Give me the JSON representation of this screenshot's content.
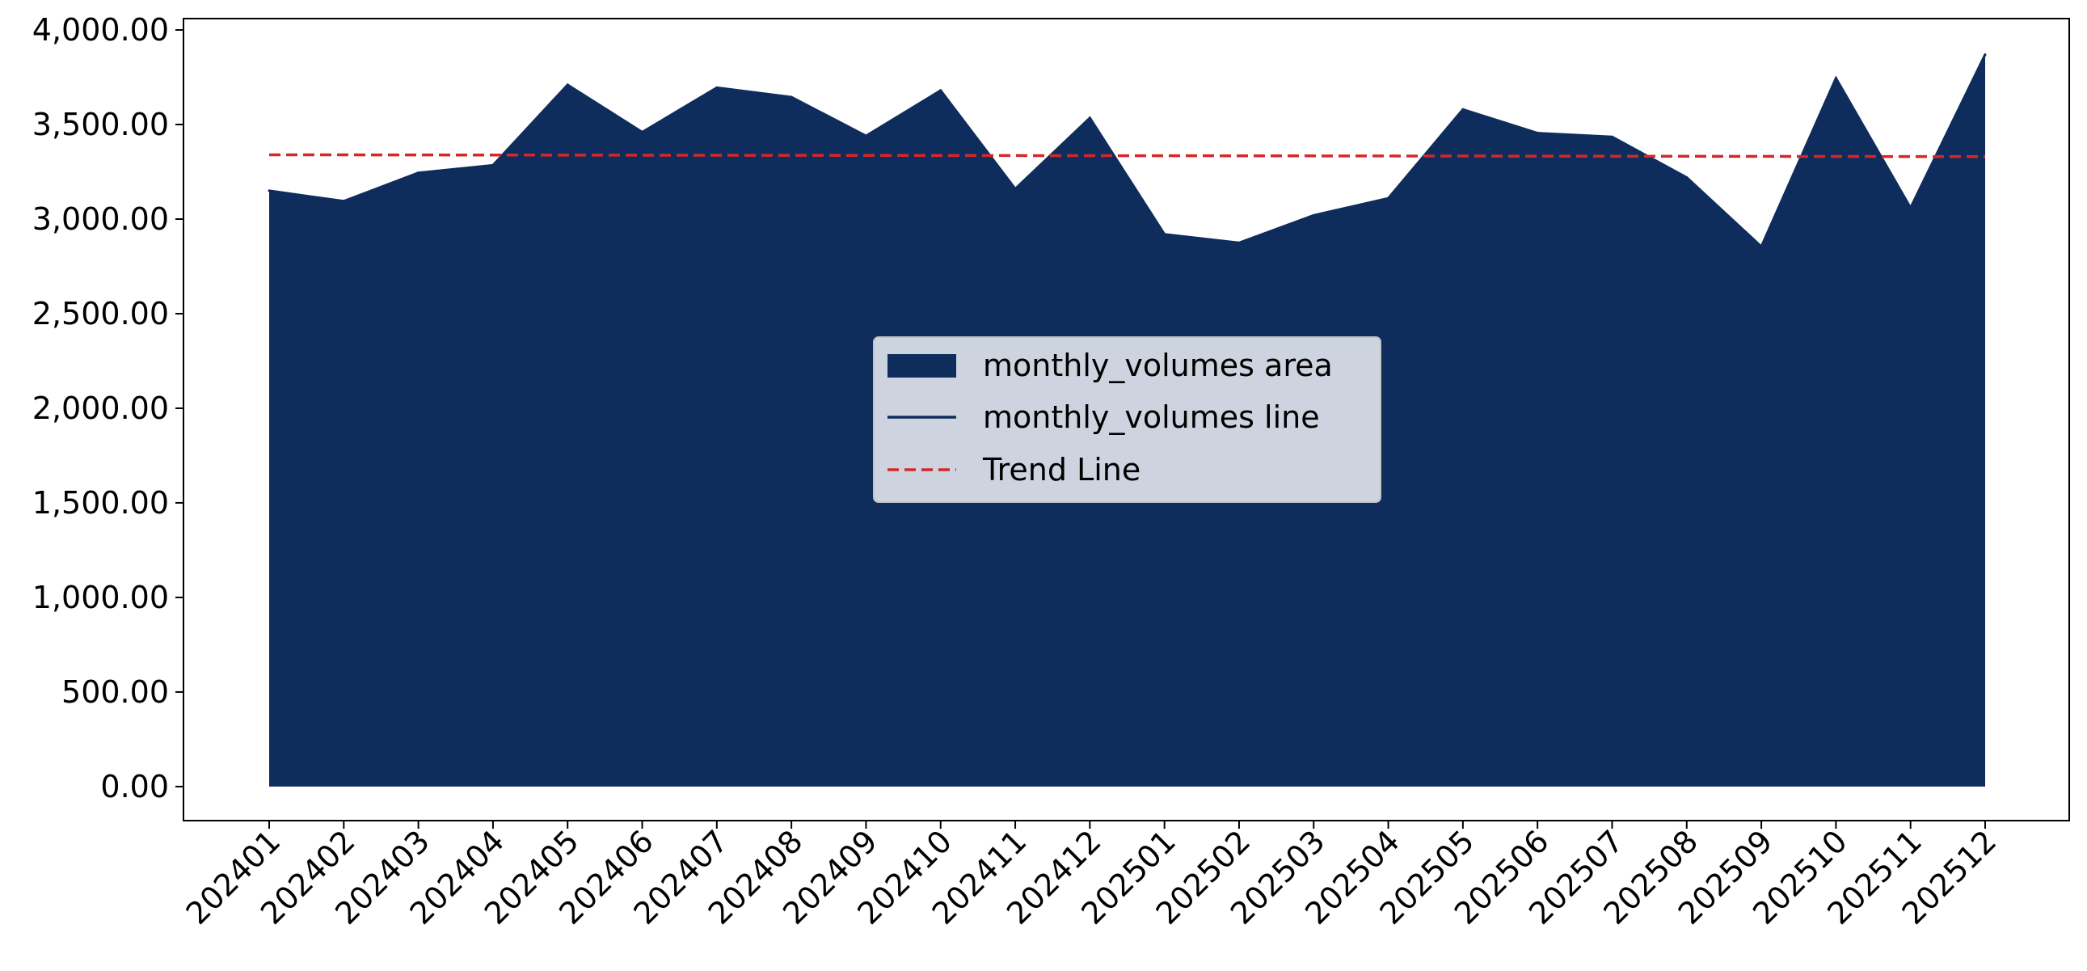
{
  "chart_data": {
    "type": "area",
    "title": "",
    "xlabel": "",
    "ylabel": "",
    "categories": [
      "202401",
      "202402",
      "202403",
      "202404",
      "202405",
      "202406",
      "202407",
      "202408",
      "202409",
      "202410",
      "202411",
      "202412",
      "202501",
      "202502",
      "202503",
      "202504",
      "202505",
      "202506",
      "202507",
      "202508",
      "202509",
      "202510",
      "202511",
      "202512"
    ],
    "series": [
      {
        "name": "monthly_volumes area",
        "kind": "area",
        "color": "#0e2d5d",
        "values": [
          3150,
          3095,
          3245,
          3285,
          3710,
          3460,
          3695,
          3645,
          3440,
          3680,
          3160,
          3535,
          2920,
          2875,
          3020,
          3110,
          3580,
          3455,
          3435,
          3220,
          2855,
          3745,
          3060,
          3870
        ]
      },
      {
        "name": "monthly_volumes line",
        "kind": "line",
        "color": "#0e2d5d",
        "values": [
          3150,
          3095,
          3245,
          3285,
          3710,
          3460,
          3695,
          3645,
          3440,
          3680,
          3160,
          3535,
          2920,
          2875,
          3020,
          3110,
          3580,
          3455,
          3435,
          3220,
          2855,
          3745,
          3060,
          3870
        ]
      },
      {
        "name": "Trend Line",
        "kind": "trend",
        "color": "#d62728",
        "values": [
          3340,
          3339.6,
          3339.2,
          3338.7,
          3338.3,
          3337.9,
          3337.5,
          3337.1,
          3336.7,
          3336.2,
          3335.8,
          3335.4,
          3335,
          3334.6,
          3334.2,
          3333.7,
          3333.3,
          3332.9,
          3332.5,
          3332.1,
          3331.7,
          3331.2,
          3330.8,
          3330.4
        ]
      }
    ],
    "ylim": [
      -180,
      4060
    ],
    "yticks": [
      0,
      500,
      1000,
      1500,
      2000,
      2500,
      3000,
      3500,
      4000
    ],
    "ytick_labels": [
      "0.00",
      "500.00",
      "1,000.00",
      "1,500.00",
      "2,000.00",
      "2,500.00",
      "3,000.00",
      "3,500.00",
      "4,000.00"
    ],
    "grid": false,
    "legend": {
      "placement": "center",
      "entries": [
        "monthly_volumes area",
        "monthly_volumes line",
        "Trend Line"
      ]
    }
  }
}
